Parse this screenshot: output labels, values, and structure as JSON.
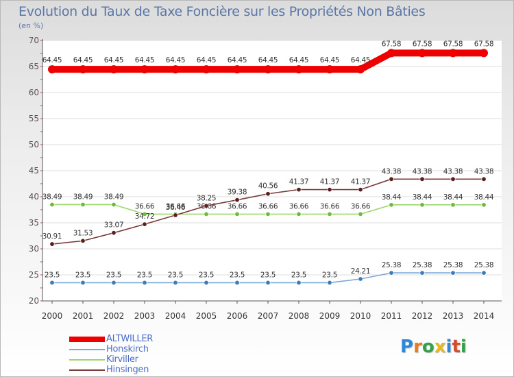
{
  "title": "Evolution du Taux de Taxe Foncière sur les Propriétés Non Bâties",
  "unit_label": "(en %)",
  "logo": {
    "text": "Proxiti",
    "letters": [
      "P",
      "r",
      "o",
      "x",
      "i",
      "t",
      "i"
    ],
    "colors": [
      "#2a8ad9",
      "#e87b1e",
      "#2fa24a",
      "#e8b81e",
      "#2a8ad9",
      "#d94a2a",
      "#2fa24a"
    ]
  },
  "chart_data": {
    "type": "line",
    "title": "Evolution du Taux de Taxe Foncière sur les Propriétés Non Bâties",
    "ylabel": "(en %)",
    "xlabel": "",
    "ylim": [
      20,
      70
    ],
    "yticks": [
      20,
      25,
      30,
      35,
      40,
      45,
      50,
      55,
      60,
      65,
      70
    ],
    "grid": "horizontal",
    "legend_position": "bottom-left",
    "categories": [
      "2000",
      "2001",
      "2002",
      "2003",
      "2004",
      "2005",
      "2006",
      "2007",
      "2008",
      "2009",
      "2010",
      "2011",
      "2012",
      "2013",
      "2014"
    ],
    "series": [
      {
        "name": "ALTWILLER",
        "color": "#ee0000",
        "emphasis": true,
        "values": [
          64.45,
          64.45,
          64.45,
          64.45,
          64.45,
          64.45,
          64.45,
          64.45,
          64.45,
          64.45,
          64.45,
          67.58,
          67.58,
          67.58,
          67.58
        ],
        "labels": [
          "64.45",
          "64.45",
          "64.45",
          "64.45",
          "64.45",
          "64.45",
          "64.45",
          "64.45",
          "64.45",
          "64.45",
          "64.45",
          "67.58",
          "67.58",
          "67.58",
          "67.58"
        ]
      },
      {
        "name": "Honskirch",
        "color": "#7aa8d8",
        "point_color": "#3d7ab8",
        "values": [
          23.5,
          23.5,
          23.5,
          23.5,
          23.5,
          23.5,
          23.5,
          23.5,
          23.5,
          23.5,
          24.21,
          25.38,
          25.38,
          25.38,
          25.38
        ],
        "labels": [
          "23.5",
          "23.5",
          "23.5",
          "23.5",
          "23.5",
          "23.5",
          "23.5",
          "23.5",
          "23.5",
          "23.5",
          "24.21",
          "25.38",
          "25.38",
          "25.38",
          "25.38"
        ]
      },
      {
        "name": "Kirviller",
        "color": "#9ad66a",
        "point_color": "#6dbb3a",
        "values": [
          38.49,
          38.49,
          38.49,
          36.66,
          36.66,
          36.66,
          36.66,
          36.66,
          36.66,
          36.66,
          36.66,
          38.44,
          38.44,
          38.44,
          38.44
        ],
        "labels": [
          "38.49",
          "38.49",
          "38.49",
          "36.66",
          "36.66",
          "36.66",
          "36.66",
          "36.66",
          "36.66",
          "36.66",
          "36.66",
          "38.44",
          "38.44",
          "38.44",
          "38.44"
        ]
      },
      {
        "name": "Hinsingen",
        "color": "#7a3a3a",
        "point_color": "#5a1e1e",
        "values": [
          30.91,
          31.53,
          33.07,
          34.72,
          36.46,
          38.25,
          39.38,
          40.56,
          41.37,
          41.37,
          41.37,
          43.38,
          43.38,
          43.38,
          43.38
        ],
        "labels": [
          "30.91",
          "31.53",
          "33.07",
          "34.72",
          "36.46",
          "38.25",
          "39.38",
          "40.56",
          "41.37",
          "41.37",
          "41.37",
          "43.38",
          "43.38",
          "43.38",
          "43.38"
        ]
      }
    ]
  }
}
